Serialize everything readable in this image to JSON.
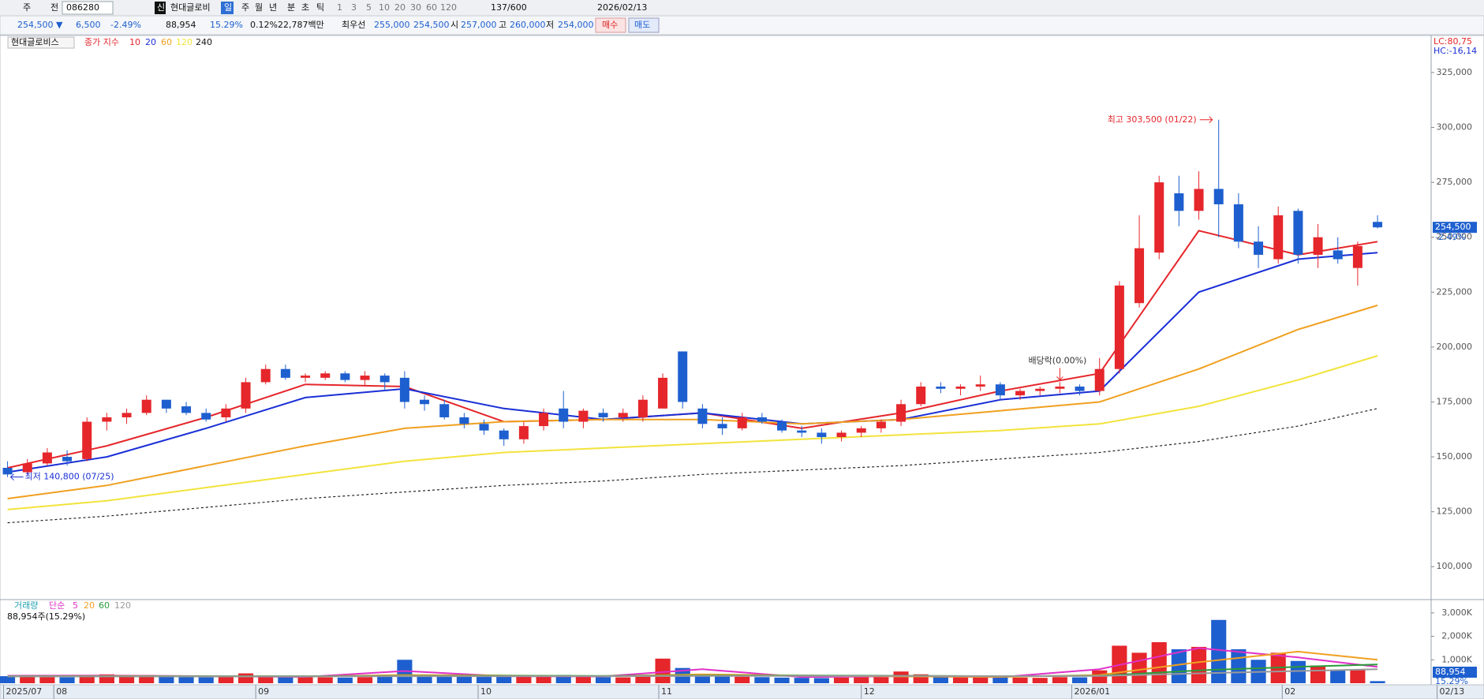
{
  "toolbar": [
    "주",
    "전",
    "086280",
    "신",
    "현대글로비",
    "일",
    "주",
    "월",
    "년",
    "분",
    "초",
    "틱",
    "1",
    "3",
    "5",
    "10",
    "20",
    "30",
    "60",
    "120",
    "137/600",
    "2026/02/13"
  ],
  "quote": [
    "254,500 ▼",
    "6,500",
    "-2.49%",
    "88,954",
    "15.29%",
    "0.12%",
    "22,787백만",
    "최우선",
    "255,000",
    "254,500",
    "시",
    "257,000",
    "고",
    "260,000",
    "저",
    "254,000",
    "매수",
    "매도"
  ],
  "chart_data": [
    {
      "type": "candlestick",
      "title": "현대글로비스",
      "subtitle": "종가 지수",
      "indicators": [
        "LC:80,75",
        "HC:-16,14"
      ],
      "up_color": "#e5262b",
      "down_color": "#1e5fcf",
      "open": [
        145000,
        143000,
        147000,
        150000,
        149000,
        166000,
        168000,
        170000,
        176000,
        173000,
        170000,
        168000,
        172000,
        184000,
        190000,
        186000,
        186000,
        188000,
        185000,
        187000,
        186000,
        176000,
        174000,
        168000,
        165000,
        162000,
        158000,
        164000,
        172000,
        166000,
        170000,
        168000,
        168000,
        172000,
        198000,
        172000,
        165000,
        163000,
        168000,
        166000,
        162000,
        161000,
        159000,
        161000,
        163000,
        166000,
        174000,
        182000,
        181000,
        182000,
        183000,
        178000,
        180000,
        181000,
        182000,
        180000,
        190000,
        220000,
        243000,
        270000,
        262000,
        272000,
        265000,
        248000,
        240000,
        262000,
        242000,
        244000,
        236000,
        257000
      ],
      "high": [
        148000,
        149000,
        154000,
        153000,
        168000,
        170000,
        172000,
        178000,
        176000,
        175000,
        172000,
        174000,
        186000,
        192000,
        192000,
        188000,
        189000,
        189000,
        189000,
        188000,
        189000,
        178000,
        176000,
        170000,
        167000,
        163000,
        166000,
        172000,
        180000,
        172000,
        172000,
        172000,
        178000,
        188000,
        198000,
        174000,
        168000,
        170000,
        170000,
        167000,
        164000,
        163000,
        162000,
        164000,
        167000,
        176000,
        184000,
        184000,
        183000,
        187000,
        184000,
        181000,
        182000,
        184000,
        183000,
        195000,
        230000,
        260000,
        278000,
        278000,
        280000,
        303500,
        270000,
        255000,
        264000,
        263000,
        256000,
        250000,
        248000,
        260000
      ],
      "low": [
        140800,
        142000,
        146000,
        146000,
        148000,
        162000,
        165000,
        169000,
        170000,
        169000,
        166000,
        166000,
        170000,
        183000,
        185000,
        184000,
        185000,
        184000,
        182000,
        180000,
        172000,
        171000,
        167000,
        163000,
        160000,
        155000,
        156000,
        162000,
        163000,
        163000,
        166000,
        166000,
        166000,
        172000,
        172000,
        163000,
        160000,
        162000,
        165000,
        161000,
        159000,
        156000,
        157000,
        159000,
        161000,
        164000,
        173000,
        179000,
        178000,
        180000,
        176000,
        176000,
        178000,
        179000,
        178000,
        178000,
        188000,
        218000,
        240000,
        255000,
        258000,
        250000,
        245000,
        236000,
        238000,
        238000,
        236000,
        238000,
        228000,
        254000
      ],
      "close": [
        142000,
        147000,
        152000,
        148000,
        166000,
        168000,
        170000,
        176000,
        172000,
        170000,
        167000,
        172000,
        184000,
        190000,
        186000,
        187000,
        188000,
        185000,
        187000,
        184000,
        175000,
        174000,
        168000,
        165000,
        162000,
        158000,
        164000,
        170000,
        166000,
        171000,
        168000,
        170000,
        176000,
        186000,
        175000,
        165000,
        163000,
        168000,
        166000,
        162000,
        161000,
        159000,
        161000,
        163000,
        166000,
        174000,
        182000,
        181000,
        182000,
        183000,
        178000,
        180000,
        181000,
        182000,
        180000,
        190000,
        228000,
        245000,
        275000,
        262000,
        272000,
        265000,
        248000,
        242000,
        260000,
        242000,
        250000,
        240000,
        246000,
        254500
      ],
      "xlim": [
        -0.3,
        71.7
      ],
      "ylim": [
        85000,
        341500
      ],
      "yticks": [
        {
          "value": 100000,
          "label": "100,000"
        },
        {
          "value": 125000,
          "label": "125,000"
        },
        {
          "value": 150000,
          "label": "150,000"
        },
        {
          "value": 175000,
          "label": "175,000"
        },
        {
          "value": 200000,
          "label": "200,000"
        },
        {
          "value": 225000,
          "label": "225,000"
        },
        {
          "value": 250000,
          "label": "250,000"
        },
        {
          "value": 275000,
          "label": "275,000"
        },
        {
          "value": 300000,
          "label": "300,000"
        },
        {
          "value": 325000,
          "label": "325,000"
        }
      ],
      "grid": false,
      "series": [
        {
          "name": "10",
          "color": "#e5262b",
          "x": [
            0,
            5,
            10,
            15,
            20,
            25,
            30,
            35,
            40,
            45,
            50,
            55,
            60,
            65,
            69
          ],
          "values": [
            145000,
            155000,
            168000,
            183000,
            182000,
            166000,
            167000,
            170000,
            163000,
            170000,
            180000,
            188000,
            253000,
            242000,
            248000
          ]
        },
        {
          "name": "20",
          "color": "#1a2fd6",
          "x": [
            0,
            5,
            10,
            15,
            20,
            25,
            30,
            35,
            40,
            45,
            50,
            55,
            60,
            65,
            69
          ],
          "values": [
            143000,
            150000,
            163000,
            177000,
            181000,
            172000,
            167000,
            170000,
            165000,
            167000,
            176000,
            180000,
            225000,
            240000,
            243000
          ]
        },
        {
          "name": "60",
          "color": "#f0a020",
          "x": [
            0,
            5,
            10,
            15,
            20,
            25,
            30,
            35,
            40,
            45,
            50,
            55,
            60,
            65,
            69
          ],
          "values": [
            131000,
            137000,
            146000,
            155000,
            163000,
            166000,
            167000,
            167000,
            165000,
            167000,
            171000,
            175000,
            190000,
            208000,
            219000
          ]
        },
        {
          "name": "120",
          "color": "#f2e33c",
          "x": [
            0,
            5,
            10,
            15,
            20,
            25,
            30,
            35,
            40,
            45,
            50,
            55,
            60,
            65,
            69
          ],
          "values": [
            126000,
            130000,
            136000,
            142000,
            148000,
            152000,
            154000,
            156000,
            158000,
            160000,
            162000,
            165000,
            173000,
            185000,
            196000
          ]
        },
        {
          "name": "240",
          "color": "#222222",
          "dashed": true,
          "x": [
            0,
            5,
            10,
            15,
            20,
            25,
            30,
            35,
            40,
            45,
            50,
            55,
            60,
            65,
            69
          ],
          "values": [
            120000,
            123000,
            127000,
            131000,
            134000,
            137000,
            139000,
            142000,
            144000,
            146000,
            149000,
            152000,
            157000,
            164000,
            172000
          ]
        }
      ],
      "price_tag": {
        "value": 254500,
        "label": "254,500"
      },
      "change_label": "-2.49%",
      "annotations": [
        {
          "label": "최고 303,500 (01/22)",
          "index": 61,
          "value": 303500,
          "color": "#e5262b"
        },
        {
          "label": "최저 140,800 (07/25)",
          "index": 0,
          "value": 140800,
          "color": "#1a2fd6"
        },
        {
          "label": "배당락(0.00%)",
          "index": 53,
          "value": 184000,
          "color": "#333333"
        }
      ]
    },
    {
      "type": "bar",
      "title": "거래량",
      "ma_prefix": "단순",
      "info": "88,954주(15.29%)",
      "values": [
        300000,
        280000,
        260000,
        250000,
        320000,
        380000,
        300000,
        350000,
        280000,
        260000,
        250000,
        300000,
        420000,
        330000,
        280000,
        260000,
        250000,
        240000,
        260000,
        280000,
        1000000,
        350000,
        300000,
        280000,
        320000,
        280000,
        300000,
        330000,
        350000,
        280000,
        260000,
        250000,
        300000,
        1050000,
        650000,
        400000,
        300000,
        280000,
        260000,
        240000,
        230000,
        220000,
        240000,
        250000,
        260000,
        500000,
        380000,
        300000,
        260000,
        280000,
        250000,
        240000,
        230000,
        260000,
        250000,
        550000,
        1600000,
        1300000,
        1750000,
        1450000,
        1550000,
        2700000,
        1450000,
        1000000,
        1300000,
        950000,
        750000,
        550000,
        600000,
        88954
      ],
      "xlim": [
        -0.3,
        71.7
      ],
      "ylim": [
        0,
        3500000
      ],
      "yticks": [
        {
          "value": 1000000,
          "label": "1,000K"
        },
        {
          "value": 2000000,
          "label": "2,000K"
        },
        {
          "value": 3000000,
          "label": "3,000K"
        }
      ],
      "xticks": [
        {
          "value": -0.2,
          "label": "2025/07"
        },
        {
          "value": 2.33,
          "label": "08"
        },
        {
          "value": 12.5,
          "label": "09"
        },
        {
          "value": 23.7,
          "label": "10"
        },
        {
          "value": 32.8,
          "label": "11"
        },
        {
          "value": 43,
          "label": "12"
        },
        {
          "value": 53.6,
          "label": "2026/01"
        },
        {
          "value": 64.2,
          "label": "02"
        },
        {
          "value": 72,
          "label": "02/13"
        }
      ],
      "series": [
        {
          "name": "5",
          "color": "#e030c8",
          "x": [
            0,
            5,
            10,
            15,
            20,
            25,
            30,
            35,
            40,
            45,
            50,
            55,
            60,
            65,
            69
          ],
          "values": [
            320000,
            330000,
            300000,
            270000,
            520000,
            300000,
            290000,
            600000,
            260000,
            300000,
            260000,
            600000,
            1500000,
            1100000,
            700000
          ]
        },
        {
          "name": "20",
          "color": "#f0a020",
          "x": [
            0,
            5,
            10,
            15,
            20,
            25,
            30,
            35,
            40,
            45,
            50,
            55,
            60,
            65,
            69
          ],
          "values": [
            300000,
            310000,
            300000,
            290000,
            350000,
            330000,
            300000,
            380000,
            330000,
            290000,
            270000,
            350000,
            900000,
            1350000,
            1000000
          ]
        },
        {
          "name": "60",
          "color": "#2a9a3a",
          "x": [
            0,
            5,
            10,
            15,
            20,
            25,
            30,
            35,
            40,
            45,
            50,
            55,
            60,
            65,
            69
          ],
          "values": [
            300000,
            300000,
            300000,
            300000,
            310000,
            320000,
            310000,
            330000,
            330000,
            320000,
            300000,
            320000,
            550000,
            700000,
            800000
          ]
        },
        {
          "name": "120",
          "color": "#999999",
          "x": [
            0,
            5,
            10,
            15,
            20,
            25,
            30,
            35,
            40,
            45,
            50,
            55,
            60,
            65,
            69
          ],
          "values": [
            290000,
            290000,
            290000,
            290000,
            300000,
            300000,
            300000,
            310000,
            310000,
            310000,
            300000,
            310000,
            420000,
            520000,
            600000
          ]
        }
      ],
      "value_tag": {
        "value": 88954,
        "label": "88,954"
      },
      "ratio_label": "15.29%"
    }
  ]
}
